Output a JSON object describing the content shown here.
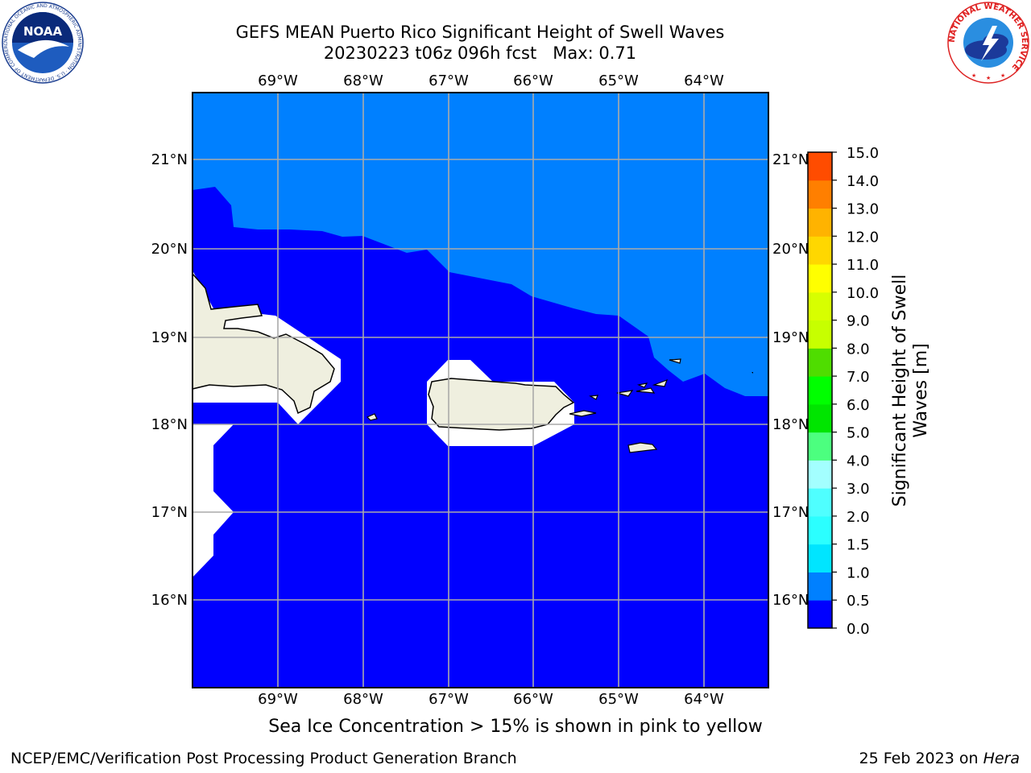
{
  "header": {
    "title_line1": "GEFS MEAN Puerto Rico Significant Height of Swell Waves",
    "title_line2": "20230223 t06z 096h fcst   Max: 0.71"
  },
  "map": {
    "lon_labels": [
      "69°W",
      "68°W",
      "67°W",
      "66°W",
      "65°W",
      "64°W"
    ],
    "lat_labels": [
      "21°N",
      "20°N",
      "19°N",
      "18°N",
      "17°N",
      "16°N"
    ],
    "land_color": "#efefdf",
    "gridline_color": "#aaaaaa",
    "field_low_color": "#0000ff",
    "field_high_color": "#0080ff"
  },
  "colorbar": {
    "title_line1": "Significant Height of Swell",
    "title_line2": "Waves [m]",
    "labels": [
      "0.0",
      "0.5",
      "1.0",
      "1.5",
      "2.0",
      "3.0",
      "4.0",
      "5.0",
      "6.0",
      "7.0",
      "8.0",
      "9.0",
      "10.0",
      "11.0",
      "12.0",
      "13.0",
      "14.0",
      "15.0"
    ],
    "colors": [
      "#0000ff",
      "#0080ff",
      "#00e5ff",
      "#2bffff",
      "#4fffff",
      "#a3ffff",
      "#4cff7f",
      "#00e500",
      "#00ff00",
      "#4fdd00",
      "#c7ff00",
      "#d7ff00",
      "#ffff00",
      "#ffd700",
      "#ffb300",
      "#ff7f00",
      "#ff4c00",
      "#ff1c00",
      "#ff0000"
    ]
  },
  "footer": {
    "caption": "Sea Ice Concentration > 15% is shown in pink to yellow",
    "credit": "NCEP/EMC/Verification Post Processing Product Generation Branch",
    "date": "25 Feb 2023 on",
    "host": "Hera"
  },
  "logos": {
    "noaa_text": "NOAA",
    "noaa_ring": "NATIONAL OCEANIC AND ATMOSPHERIC ADMINISTRATION · U.S. DEPARTMENT OF COMMERCE",
    "nws_ring": "NATIONAL WEATHER SERVICE"
  }
}
